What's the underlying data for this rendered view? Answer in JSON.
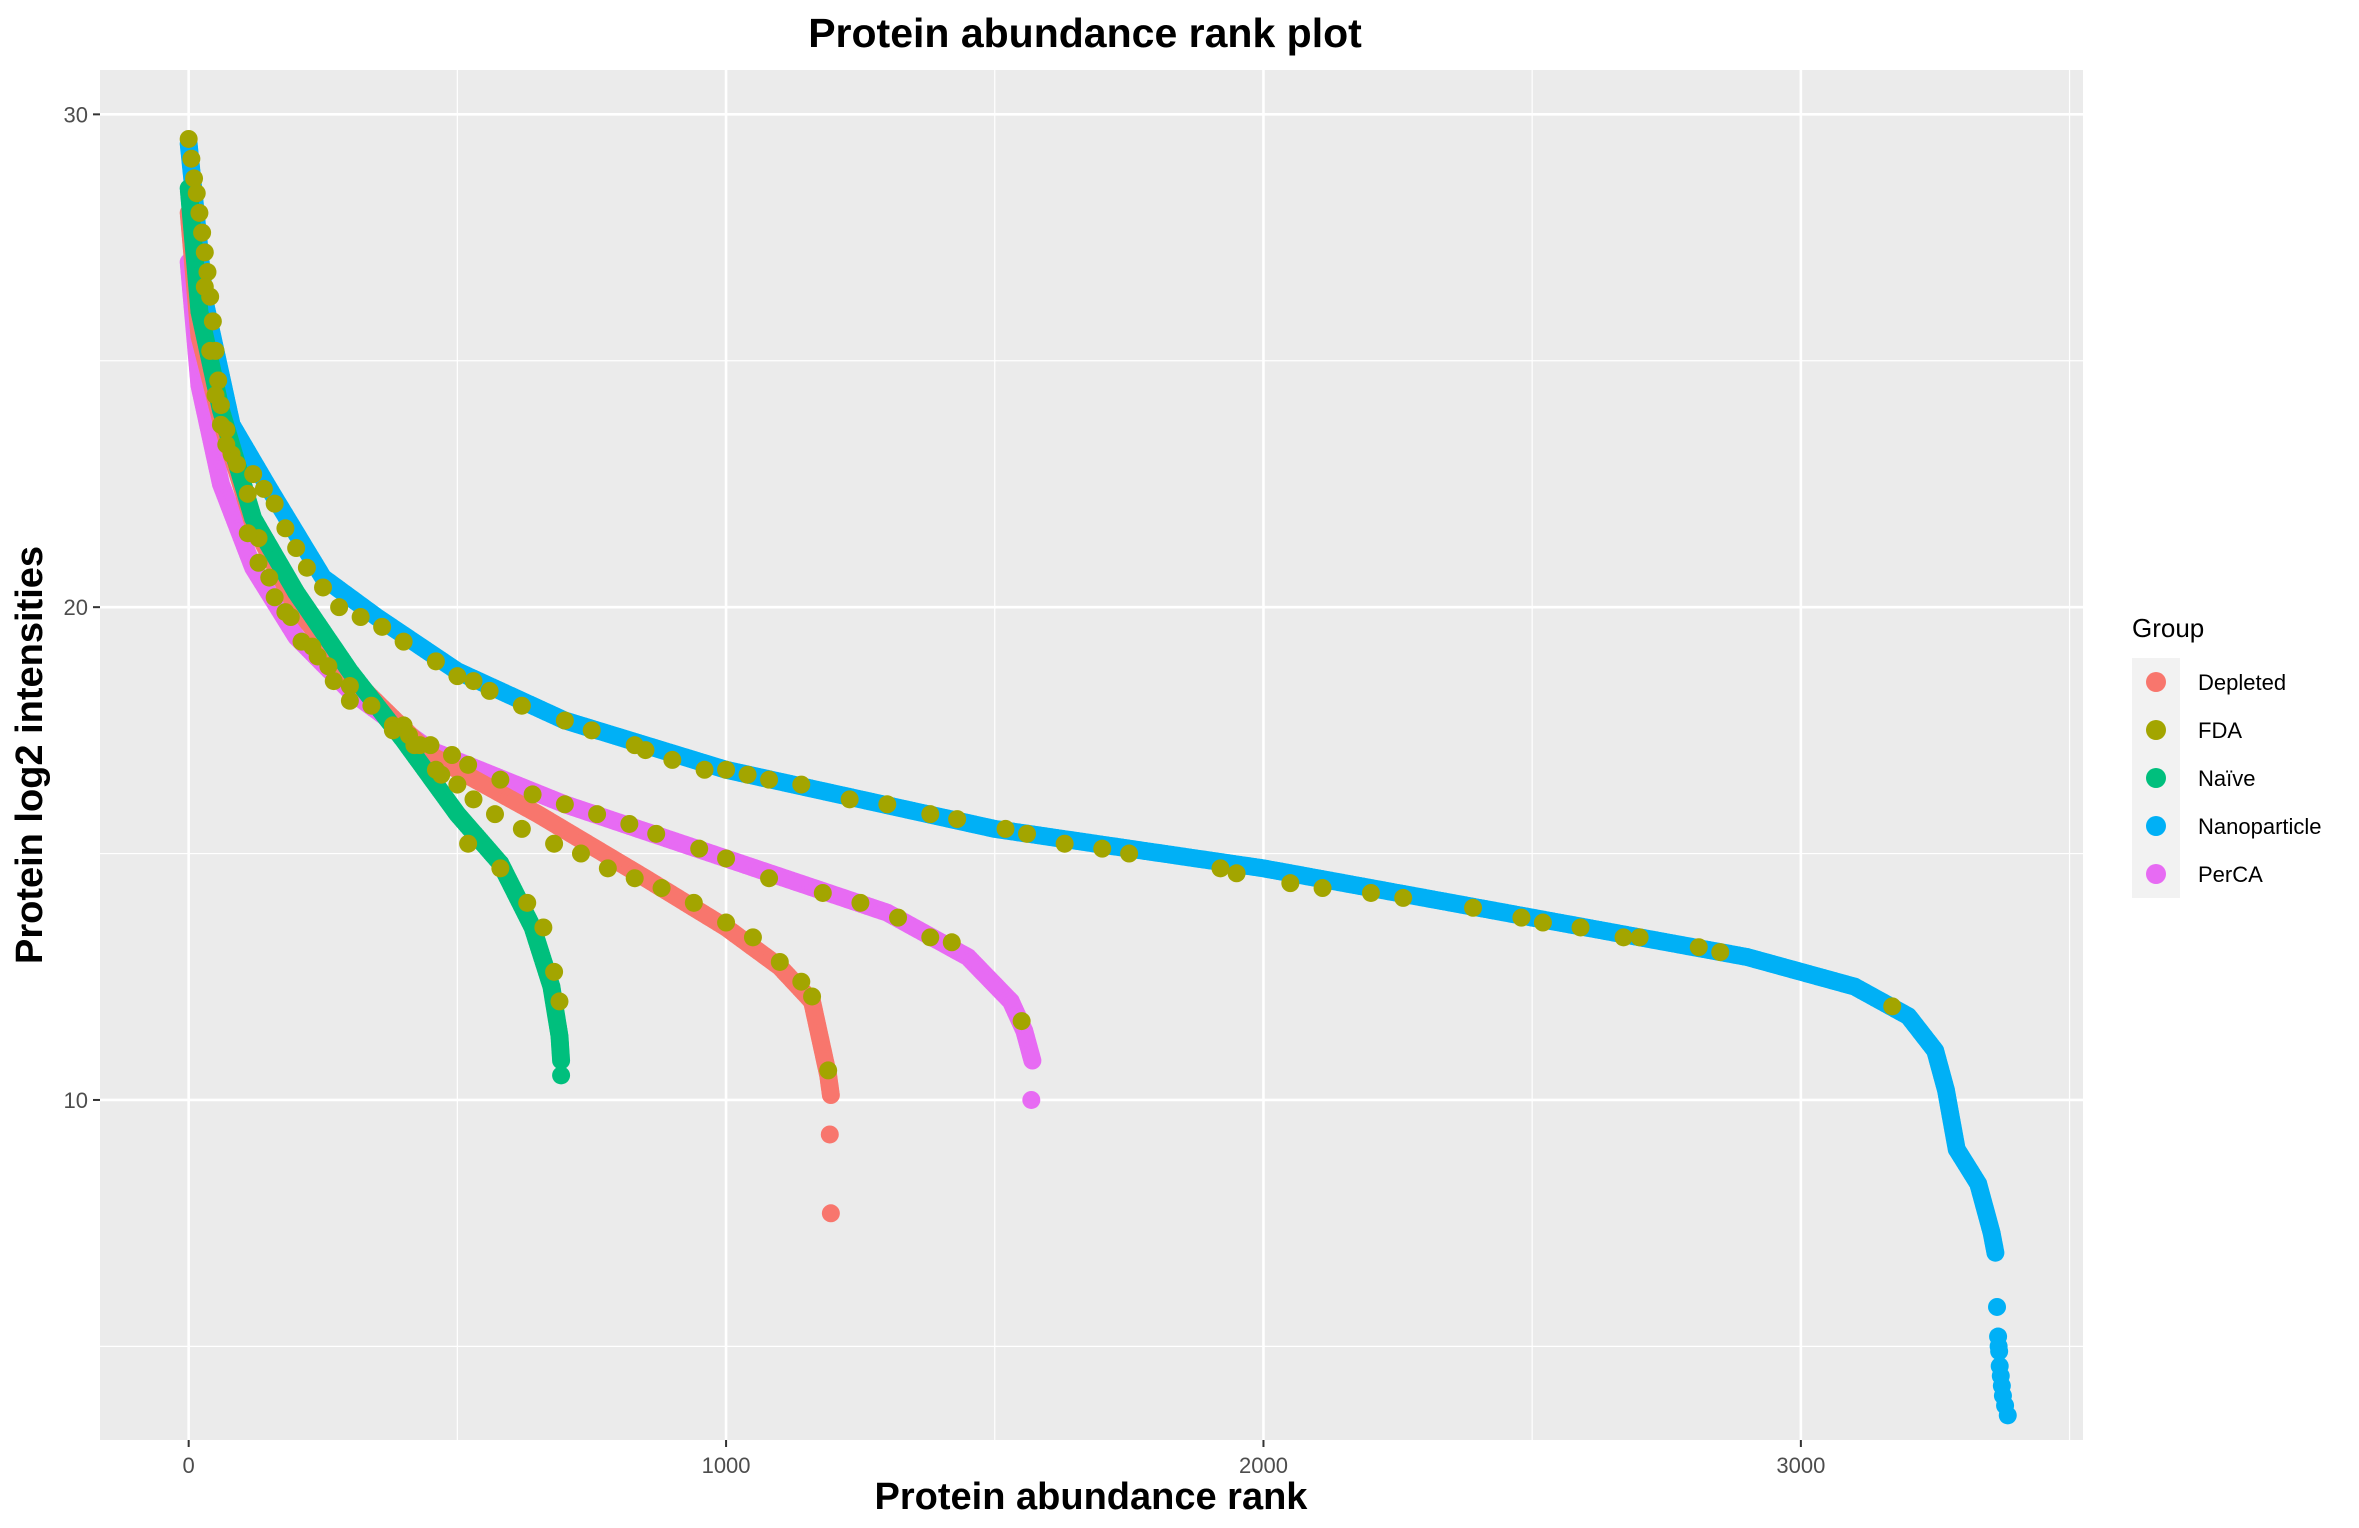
{
  "chart_data": {
    "type": "scatter",
    "title": "Protein abundance rank plot",
    "xlabel": "Protein abundance rank",
    "ylabel": "Protein log2 intensities",
    "xlim": [
      -165,
      3525
    ],
    "ylim": [
      3.1,
      30.9
    ],
    "x_ticks": [
      0,
      1000,
      2000,
      3000
    ],
    "y_ticks": [
      10,
      20,
      30
    ],
    "x_tick_labels": [
      "0",
      "1000",
      "2000",
      "3000"
    ],
    "y_tick_labels": [
      "10",
      "20",
      "30"
    ],
    "grid": true,
    "legend": {
      "title": "Group",
      "position": "right"
    },
    "series": [
      {
        "name": "Nanoparticle",
        "color": "#00B0F6",
        "curve": [
          [
            0,
            29.4
          ],
          [
            30,
            26.2
          ],
          [
            80,
            23.7
          ],
          [
            150,
            22.4
          ],
          [
            250,
            20.6
          ],
          [
            350,
            19.8
          ],
          [
            500,
            18.7
          ],
          [
            700,
            17.7
          ],
          [
            1000,
            16.7
          ],
          [
            1500,
            15.5
          ],
          [
            2000,
            14.7
          ],
          [
            2500,
            13.7
          ],
          [
            2900,
            12.9
          ],
          [
            3100,
            12.3
          ],
          [
            3200,
            11.7
          ],
          [
            3250,
            11.0
          ],
          [
            3270,
            10.2
          ],
          [
            3290,
            9.0
          ],
          [
            3330,
            8.3
          ],
          [
            3355,
            7.3
          ],
          [
            3362,
            6.9
          ]
        ],
        "outliers": [
          [
            3365,
            5.8
          ],
          [
            3367,
            5.2
          ],
          [
            3368,
            5.0
          ],
          [
            3369,
            4.9
          ],
          [
            3370,
            4.6
          ],
          [
            3372,
            4.4
          ],
          [
            3374,
            4.2
          ],
          [
            3376,
            4.0
          ],
          [
            3380,
            3.8
          ],
          [
            3385,
            3.6
          ]
        ]
      },
      {
        "name": "PerCA",
        "color": "#E76BF3",
        "curve": [
          [
            0,
            27.0
          ],
          [
            20,
            24.5
          ],
          [
            60,
            22.5
          ],
          [
            120,
            20.8
          ],
          [
            200,
            19.4
          ],
          [
            300,
            18.3
          ],
          [
            450,
            17.1
          ],
          [
            700,
            16.0
          ],
          [
            1000,
            14.9
          ],
          [
            1300,
            13.8
          ],
          [
            1450,
            12.9
          ],
          [
            1530,
            12.0
          ],
          [
            1555,
            11.4
          ],
          [
            1565,
            11.0
          ],
          [
            1570,
            10.8
          ]
        ],
        "outliers": [
          [
            1568,
            10.0
          ]
        ]
      },
      {
        "name": "Depleted",
        "color": "#F8766D",
        "curve": [
          [
            0,
            28.0
          ],
          [
            20,
            25.5
          ],
          [
            60,
            23.8
          ],
          [
            120,
            21.7
          ],
          [
            200,
            20.0
          ],
          [
            300,
            18.6
          ],
          [
            450,
            17.0
          ],
          [
            650,
            15.8
          ],
          [
            850,
            14.5
          ],
          [
            1000,
            13.5
          ],
          [
            1100,
            12.7
          ],
          [
            1160,
            12.0
          ],
          [
            1180,
            11.0
          ],
          [
            1190,
            10.5
          ],
          [
            1195,
            10.1
          ]
        ],
        "outliers": [
          [
            1193,
            9.3
          ],
          [
            1195,
            7.7
          ]
        ]
      },
      {
        "name": "Naïve",
        "color": "#00BF7D",
        "curve": [
          [
            0,
            28.5
          ],
          [
            20,
            26.0
          ],
          [
            60,
            24.0
          ],
          [
            120,
            21.8
          ],
          [
            200,
            20.3
          ],
          [
            300,
            18.7
          ],
          [
            400,
            17.3
          ],
          [
            500,
            15.8
          ],
          [
            580,
            14.8
          ],
          [
            640,
            13.5
          ],
          [
            675,
            12.3
          ],
          [
            690,
            11.3
          ],
          [
            693,
            10.8
          ]
        ],
        "outliers": [
          [
            693,
            10.5
          ]
        ]
      },
      {
        "name": "FDA",
        "color": "#A3A500",
        "curve": [],
        "outliers": [
          [
            0,
            29.5
          ],
          [
            5,
            29.1
          ],
          [
            10,
            28.7
          ],
          [
            15,
            28.4
          ],
          [
            20,
            28.0
          ],
          [
            25,
            27.6
          ],
          [
            30,
            27.2
          ],
          [
            35,
            26.8
          ],
          [
            40,
            26.3
          ],
          [
            45,
            25.8
          ],
          [
            50,
            25.2
          ],
          [
            55,
            24.6
          ],
          [
            60,
            24.1
          ],
          [
            70,
            23.6
          ],
          [
            80,
            23.1
          ],
          [
            30,
            26.5
          ],
          [
            40,
            25.2
          ],
          [
            50,
            24.3
          ],
          [
            60,
            23.7
          ],
          [
            70,
            23.3
          ],
          [
            90,
            22.9
          ],
          [
            110,
            22.3
          ],
          [
            130,
            21.4
          ],
          [
            150,
            20.6
          ],
          [
            180,
            19.9
          ],
          [
            210,
            19.3
          ],
          [
            240,
            19.0
          ],
          [
            270,
            18.5
          ],
          [
            300,
            18.1
          ],
          [
            120,
            22.7
          ],
          [
            140,
            22.4
          ],
          [
            160,
            22.1
          ],
          [
            180,
            21.6
          ],
          [
            200,
            21.2
          ],
          [
            220,
            20.8
          ],
          [
            250,
            20.4
          ],
          [
            280,
            20.0
          ],
          [
            320,
            19.8
          ],
          [
            360,
            19.6
          ],
          [
            400,
            19.3
          ],
          [
            460,
            18.9
          ],
          [
            500,
            18.6
          ],
          [
            530,
            18.5
          ],
          [
            560,
            18.3
          ],
          [
            620,
            18.0
          ],
          [
            700,
            17.7
          ],
          [
            750,
            17.5
          ],
          [
            830,
            17.2
          ],
          [
            850,
            17.1
          ],
          [
            900,
            16.9
          ],
          [
            960,
            16.7
          ],
          [
            1000,
            16.7
          ],
          [
            1040,
            16.6
          ],
          [
            1080,
            16.5
          ],
          [
            1140,
            16.4
          ],
          [
            1230,
            16.1
          ],
          [
            1300,
            16.0
          ],
          [
            1380,
            15.8
          ],
          [
            1430,
            15.7
          ],
          [
            1520,
            15.5
          ],
          [
            1560,
            15.4
          ],
          [
            1630,
            15.2
          ],
          [
            1700,
            15.1
          ],
          [
            1750,
            15.0
          ],
          [
            1920,
            14.7
          ],
          [
            1950,
            14.6
          ],
          [
            2050,
            14.4
          ],
          [
            2110,
            14.3
          ],
          [
            2200,
            14.2
          ],
          [
            2260,
            14.1
          ],
          [
            2390,
            13.9
          ],
          [
            2480,
            13.7
          ],
          [
            2520,
            13.6
          ],
          [
            2590,
            13.5
          ],
          [
            2670,
            13.3
          ],
          [
            2700,
            13.3
          ],
          [
            2810,
            13.1
          ],
          [
            2850,
            13.0
          ],
          [
            3170,
            11.9
          ],
          [
            110,
            21.5
          ],
          [
            130,
            20.9
          ],
          [
            160,
            20.2
          ],
          [
            190,
            19.8
          ],
          [
            230,
            19.2
          ],
          [
            260,
            18.8
          ],
          [
            300,
            18.4
          ],
          [
            340,
            18.0
          ],
          [
            380,
            17.6
          ],
          [
            410,
            17.4
          ],
          [
            450,
            17.2
          ],
          [
            490,
            17.0
          ],
          [
            520,
            16.8
          ],
          [
            580,
            16.5
          ],
          [
            640,
            16.2
          ],
          [
            700,
            16.0
          ],
          [
            760,
            15.8
          ],
          [
            820,
            15.6
          ],
          [
            870,
            15.4
          ],
          [
            950,
            15.1
          ],
          [
            1000,
            14.9
          ],
          [
            1080,
            14.5
          ],
          [
            1180,
            14.2
          ],
          [
            1250,
            14.0
          ],
          [
            1320,
            13.7
          ],
          [
            1380,
            13.3
          ],
          [
            1420,
            13.2
          ],
          [
            1550,
            11.6
          ],
          [
            400,
            17.6
          ],
          [
            430,
            17.2
          ],
          [
            470,
            16.6
          ],
          [
            500,
            16.4
          ],
          [
            530,
            16.1
          ],
          [
            570,
            15.8
          ],
          [
            620,
            15.5
          ],
          [
            680,
            15.2
          ],
          [
            730,
            15.0
          ],
          [
            780,
            14.7
          ],
          [
            830,
            14.5
          ],
          [
            880,
            14.3
          ],
          [
            940,
            14.0
          ],
          [
            1000,
            13.6
          ],
          [
            1050,
            13.3
          ],
          [
            1100,
            12.8
          ],
          [
            1140,
            12.4
          ],
          [
            1160,
            12.1
          ],
          [
            1190,
            10.6
          ],
          [
            380,
            17.5
          ],
          [
            420,
            17.2
          ],
          [
            460,
            16.7
          ],
          [
            520,
            15.2
          ],
          [
            580,
            14.7
          ],
          [
            630,
            14.0
          ],
          [
            660,
            13.5
          ],
          [
            680,
            12.6
          ],
          [
            690,
            12.0
          ]
        ]
      }
    ]
  }
}
